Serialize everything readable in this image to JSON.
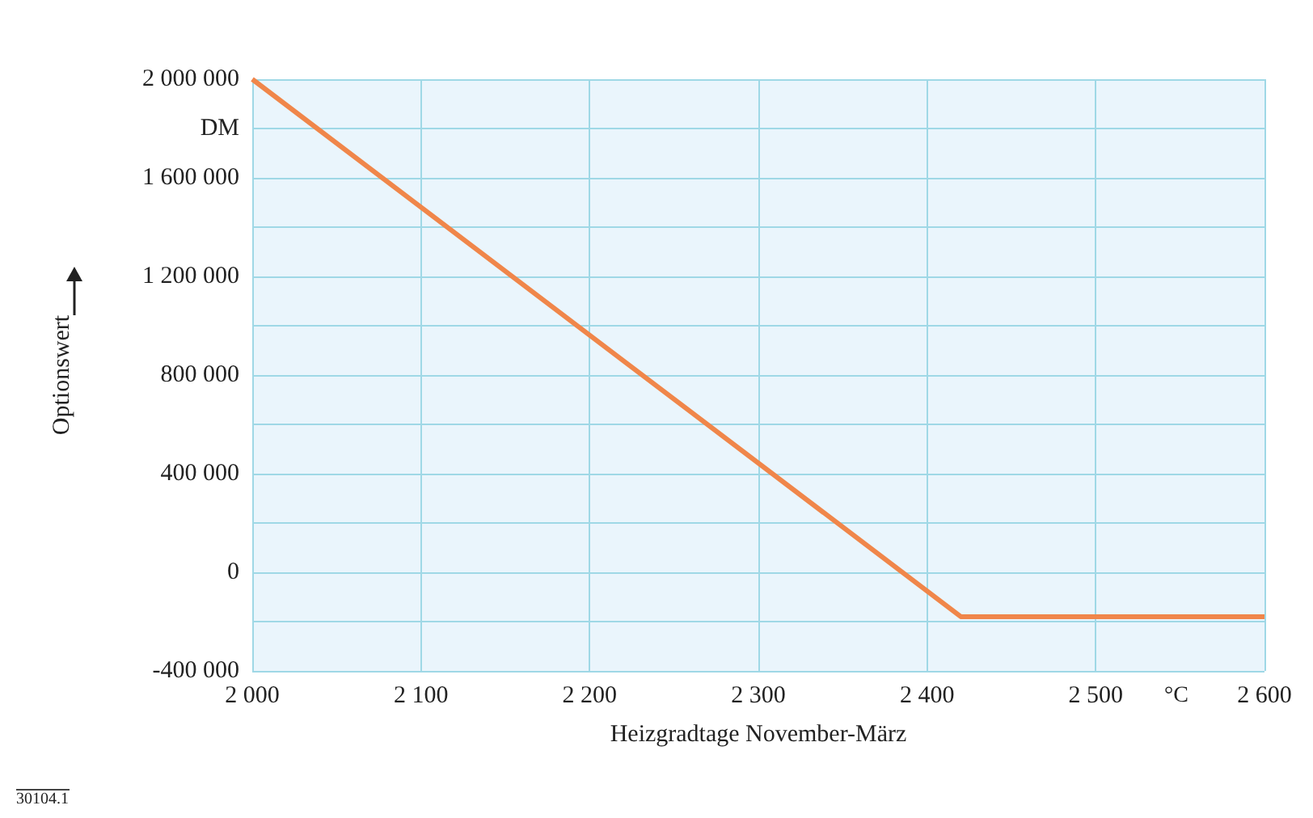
{
  "chart_data": {
    "type": "line",
    "xlabel": "Heizgradtage November-März",
    "ylabel": "Optionswert",
    "x": [
      2000,
      2420,
      2600
    ],
    "series": [
      {
        "color": "#f0864a",
        "values": [
          2000000,
          -180000,
          -180000
        ]
      }
    ],
    "xlim": [
      2000,
      2600
    ],
    "xticks": [
      {
        "value": 2000,
        "label": "2 000"
      },
      {
        "value": 2100,
        "label": "2 100"
      },
      {
        "value": 2200,
        "label": "2 200"
      },
      {
        "value": 2300,
        "label": "2 300"
      },
      {
        "value": 2400,
        "label": "2 400"
      },
      {
        "value": 2500,
        "label": "2 500"
      },
      {
        "value": 2600,
        "label": "2 600"
      }
    ],
    "ylim": [
      -400000,
      2000000
    ],
    "yticks": [
      {
        "value": -400000,
        "label": "-400 000"
      },
      {
        "value": -200000,
        "label": null
      },
      {
        "value": 0,
        "label": "0"
      },
      {
        "value": 200000,
        "label": null
      },
      {
        "value": 400000,
        "label": "400 000"
      },
      {
        "value": 600000,
        "label": null
      },
      {
        "value": 800000,
        "label": "800 000"
      },
      {
        "value": 1000000,
        "label": null
      },
      {
        "value": 1200000,
        "label": "1 200 000"
      },
      {
        "value": 1400000,
        "label": null
      },
      {
        "value": 1600000,
        "label": "1 600 000"
      },
      {
        "value": 1800000,
        "label": "DM"
      },
      {
        "value": 2000000,
        "label": "2 000 000"
      }
    ],
    "annotations": [
      "°C",
      "30104.1"
    ],
    "grid": true,
    "marker": "none",
    "line_style": "solid"
  }
}
